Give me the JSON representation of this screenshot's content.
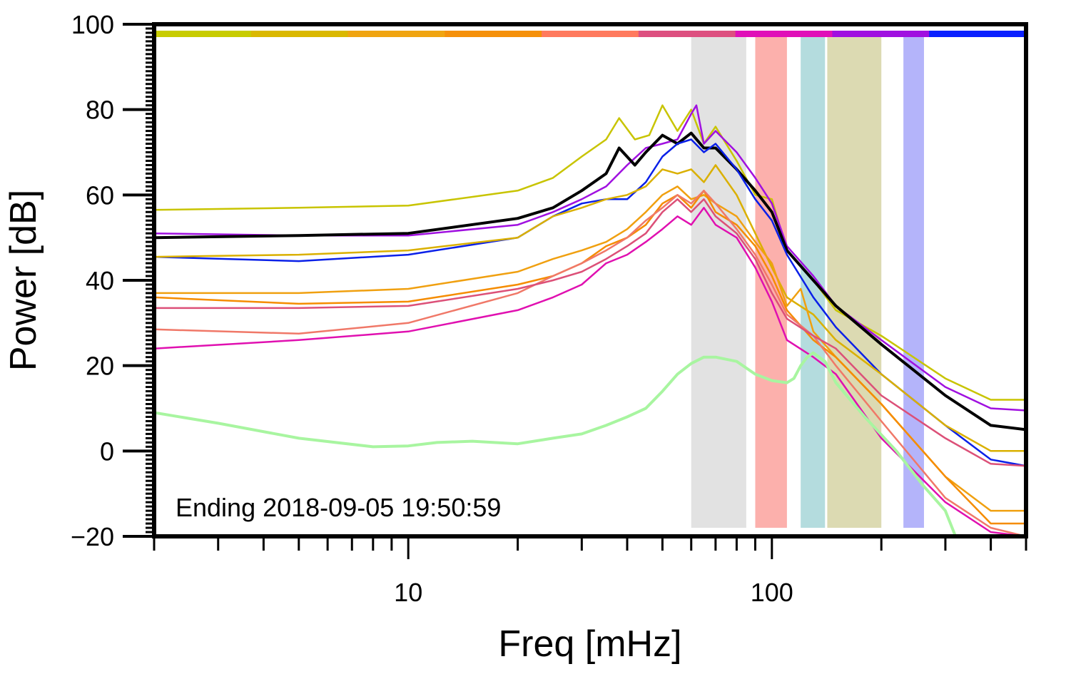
{
  "chart_data": {
    "type": "line",
    "title": "",
    "xlabel": "Freq [mHz]",
    "ylabel": "Power [dB]",
    "xscale": "log",
    "xlim": [
      2,
      500
    ],
    "ylim": [
      -20,
      100
    ],
    "x_tick_labels": [
      {
        "value": 10,
        "label": "10"
      },
      {
        "value": 100,
        "label": "100"
      }
    ],
    "y_tick_labels": [
      {
        "value": -20,
        "label": "−20"
      },
      {
        "value": 0,
        "label": "0"
      },
      {
        "value": 20,
        "label": "20"
      },
      {
        "value": 40,
        "label": "40"
      },
      {
        "value": 60,
        "label": "60"
      },
      {
        "value": 80,
        "label": "80"
      },
      {
        "value": 100,
        "label": "100"
      }
    ],
    "annotation": "Ending 2018-09-05 19:50:59",
    "color_bar": [
      "#c8cc00",
      "#dab800",
      "#f0a410",
      "#f5900a",
      "#ff7a5e",
      "#dd5080",
      "#e010b8",
      "#a010e0",
      "#0a20ff"
    ],
    "bands": [
      {
        "x0": 60,
        "x1": 85,
        "color": "#e2e2e2"
      },
      {
        "x0": 90,
        "x1": 110,
        "color": "#fcb0ac"
      },
      {
        "x0": 120,
        "x1": 140,
        "color": "#b4dcde"
      },
      {
        "x0": 142,
        "x1": 200,
        "color": "#dcdab2"
      },
      {
        "x0": 230,
        "x1": 262,
        "color": "#b4b4fa"
      }
    ],
    "series": [
      {
        "name": "olive",
        "color": "#c8c400",
        "width": 2.5,
        "x": [
          2,
          5,
          10,
          20,
          25,
          30,
          35,
          38,
          42,
          46,
          50,
          55,
          60,
          65,
          70,
          80,
          90,
          100,
          110,
          130,
          150,
          200,
          300,
          400,
          500
        ],
        "y": [
          56.5,
          57,
          57.5,
          61,
          64,
          69,
          73,
          78,
          73,
          74,
          81,
          75,
          80,
          72,
          76,
          68,
          60,
          59,
          47,
          40,
          33,
          27,
          17,
          12,
          12
        ]
      },
      {
        "name": "purple",
        "color": "#a010e0",
        "width": 2.5,
        "x": [
          2,
          5,
          10,
          20,
          25,
          30,
          35,
          40,
          45,
          50,
          55,
          60,
          62,
          65,
          70,
          80,
          90,
          100,
          110,
          130,
          150,
          200,
          300,
          400,
          500
        ],
        "y": [
          51,
          50.5,
          50.5,
          53,
          56,
          59,
          62,
          67,
          71,
          72,
          73,
          79,
          81,
          72,
          75,
          70,
          64,
          58,
          48,
          41,
          34,
          26,
          15,
          10,
          9.5
        ]
      },
      {
        "name": "black",
        "color": "#000000",
        "width": 4,
        "x": [
          2,
          5,
          10,
          20,
          25,
          30,
          35,
          38,
          42,
          45,
          50,
          55,
          60,
          65,
          70,
          80,
          90,
          100,
          110,
          130,
          150,
          200,
          300,
          400,
          500
        ],
        "y": [
          50,
          50.5,
          51,
          54.5,
          57,
          61,
          65,
          71,
          67,
          70,
          74,
          72,
          74.5,
          71,
          71,
          66,
          61,
          56,
          47,
          40,
          34,
          25,
          13,
          6,
          5
        ]
      },
      {
        "name": "blue",
        "color": "#0a20e8",
        "width": 2.5,
        "x": [
          2,
          5,
          10,
          20,
          25,
          30,
          35,
          40,
          45,
          50,
          55,
          60,
          65,
          70,
          80,
          90,
          100,
          110,
          130,
          150,
          200,
          300,
          400,
          500
        ],
        "y": [
          45.5,
          44.5,
          46,
          50,
          55,
          58,
          59,
          59,
          63,
          69,
          72,
          73,
          70,
          72,
          66,
          59,
          54,
          46,
          36,
          29,
          18,
          6,
          -2,
          -3.5
        ]
      },
      {
        "name": "gold",
        "color": "#dab000",
        "width": 2.5,
        "x": [
          2,
          5,
          10,
          20,
          25,
          30,
          35,
          40,
          45,
          50,
          55,
          60,
          65,
          70,
          80,
          90,
          100,
          110,
          130,
          150,
          200,
          300,
          400,
          500
        ],
        "y": [
          45.5,
          46,
          47,
          50,
          55,
          57,
          59,
          60,
          62,
          66,
          65,
          66,
          63,
          67,
          60,
          51,
          43,
          36,
          32,
          26,
          18,
          6,
          0,
          0
        ]
      },
      {
        "name": "orange1",
        "color": "#f0a010",
        "width": 2.5,
        "x": [
          2,
          5,
          10,
          20,
          25,
          30,
          35,
          40,
          45,
          50,
          55,
          60,
          65,
          70,
          80,
          90,
          100,
          110,
          120,
          130,
          150,
          200,
          300,
          400,
          500
        ],
        "y": [
          37,
          37,
          38,
          42,
          45,
          47,
          49,
          52,
          56,
          60,
          62,
          59,
          60,
          58,
          55,
          49,
          44,
          34,
          38,
          28,
          22,
          11,
          -6,
          -14,
          -14
        ]
      },
      {
        "name": "orange2",
        "color": "#f58c00",
        "width": 2.5,
        "x": [
          2,
          5,
          10,
          20,
          25,
          30,
          35,
          40,
          45,
          50,
          55,
          60,
          65,
          70,
          80,
          90,
          100,
          110,
          130,
          150,
          200,
          300,
          400,
          500
        ],
        "y": [
          36,
          34.5,
          35,
          39,
          41,
          44,
          48,
          50,
          53,
          58,
          60,
          57,
          61,
          56,
          53,
          48,
          41,
          33,
          26,
          22,
          11,
          -6,
          -17,
          -17
        ]
      },
      {
        "name": "salmon",
        "color": "#f07868",
        "width": 2.5,
        "x": [
          2,
          5,
          10,
          20,
          25,
          30,
          35,
          40,
          45,
          50,
          55,
          60,
          65,
          70,
          80,
          90,
          100,
          110,
          130,
          150,
          200,
          300,
          400,
          500
        ],
        "y": [
          28.5,
          27.5,
          30,
          37,
          41,
          44,
          47,
          50,
          54,
          57,
          60,
          58,
          61,
          58,
          52,
          46,
          39,
          32,
          27,
          20,
          7,
          -11,
          -18,
          -20
        ]
      },
      {
        "name": "rose",
        "color": "#dc5078",
        "width": 2.5,
        "x": [
          2,
          5,
          10,
          20,
          25,
          30,
          35,
          40,
          45,
          50,
          55,
          60,
          65,
          70,
          80,
          90,
          100,
          110,
          130,
          150,
          200,
          300,
          400,
          500
        ],
        "y": [
          33.5,
          33.5,
          34,
          38,
          40,
          42,
          45,
          48,
          51,
          56,
          59,
          56,
          59,
          55,
          51,
          45,
          37,
          31,
          27,
          24,
          13,
          3,
          -3,
          -3.5
        ]
      },
      {
        "name": "magenta",
        "color": "#e010b0",
        "width": 2.5,
        "x": [
          2,
          5,
          10,
          20,
          25,
          30,
          35,
          40,
          45,
          50,
          55,
          60,
          65,
          70,
          80,
          90,
          100,
          110,
          130,
          150,
          200,
          300,
          400,
          500
        ],
        "y": [
          24,
          26,
          28,
          33,
          36,
          39,
          44,
          46,
          49,
          52,
          55,
          53,
          57,
          53,
          50,
          43,
          35,
          26,
          22,
          18,
          3,
          -12,
          -19,
          -20
        ]
      },
      {
        "name": "lightgreen",
        "color": "#a8f5a0",
        "width": 4,
        "x": [
          2,
          3,
          5,
          8,
          10,
          12,
          15,
          20,
          25,
          30,
          35,
          40,
          45,
          50,
          55,
          60,
          65,
          70,
          80,
          90,
          100,
          110,
          115,
          120,
          125,
          130,
          140,
          150,
          180,
          220,
          260,
          300,
          320
        ],
        "y": [
          9,
          6.5,
          3,
          1,
          1.2,
          2,
          2.3,
          1.7,
          3,
          4,
          6,
          8,
          10,
          14,
          18,
          20.5,
          22,
          22,
          21,
          18,
          16.5,
          16,
          17,
          20,
          22,
          23,
          21,
          16,
          8,
          0,
          -8,
          -14,
          -20
        ]
      }
    ]
  }
}
